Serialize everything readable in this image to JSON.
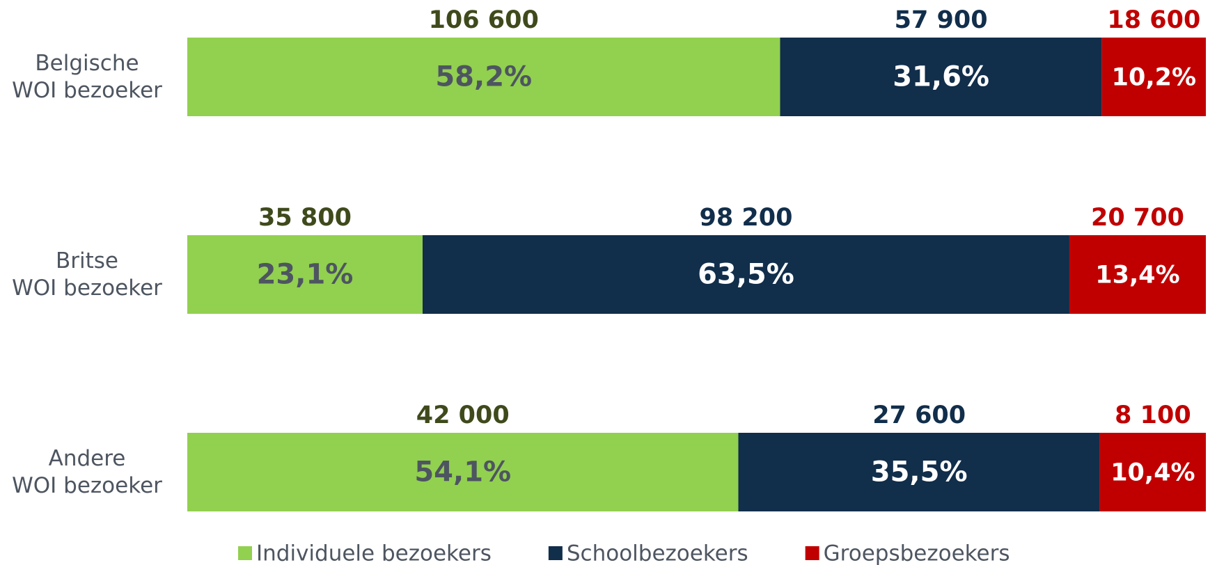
{
  "chart_data": {
    "type": "stacked-bar-horizontal",
    "categories": [
      "Belgische\nWOI bezoeker",
      "Britse\nWOI bezoeker",
      "Andere\nWOI bezoeker"
    ],
    "xlim": [
      0,
      100
    ],
    "legend": "bottom",
    "series": [
      {
        "name": "Individuele bezoekers",
        "color": "#92d050",
        "text_color": "#4d5560",
        "count_color": "#3f4a1c",
        "values": [
          58.2,
          23.1,
          54.1
        ],
        "value_labels": [
          "58,2%",
          "23,1%",
          "54,1%"
        ],
        "counts": [
          106600,
          35800,
          42000
        ],
        "count_labels": [
          "106 600",
          "35 800",
          "42 000"
        ]
      },
      {
        "name": "Schoolbezoekers",
        "color": "#112e4b",
        "text_color": "#ffffff",
        "count_color": "#112e4b",
        "values": [
          31.6,
          63.5,
          35.5
        ],
        "value_labels": [
          "31,6%",
          "63,5%",
          "35,5%"
        ],
        "counts": [
          57900,
          98200,
          27600
        ],
        "count_labels": [
          "57 900",
          "98 200",
          "27 600"
        ]
      },
      {
        "name": "Groepsbezoekers",
        "color": "#c00000",
        "text_color": "#ffffff",
        "count_color": "#c00000",
        "values": [
          10.2,
          13.4,
          10.4
        ],
        "value_labels": [
          "10,2%",
          "13,4%",
          "10,4%"
        ],
        "counts": [
          18600,
          20700,
          8100
        ],
        "count_labels": [
          "18 600",
          "20 700",
          "8 100"
        ]
      }
    ]
  }
}
